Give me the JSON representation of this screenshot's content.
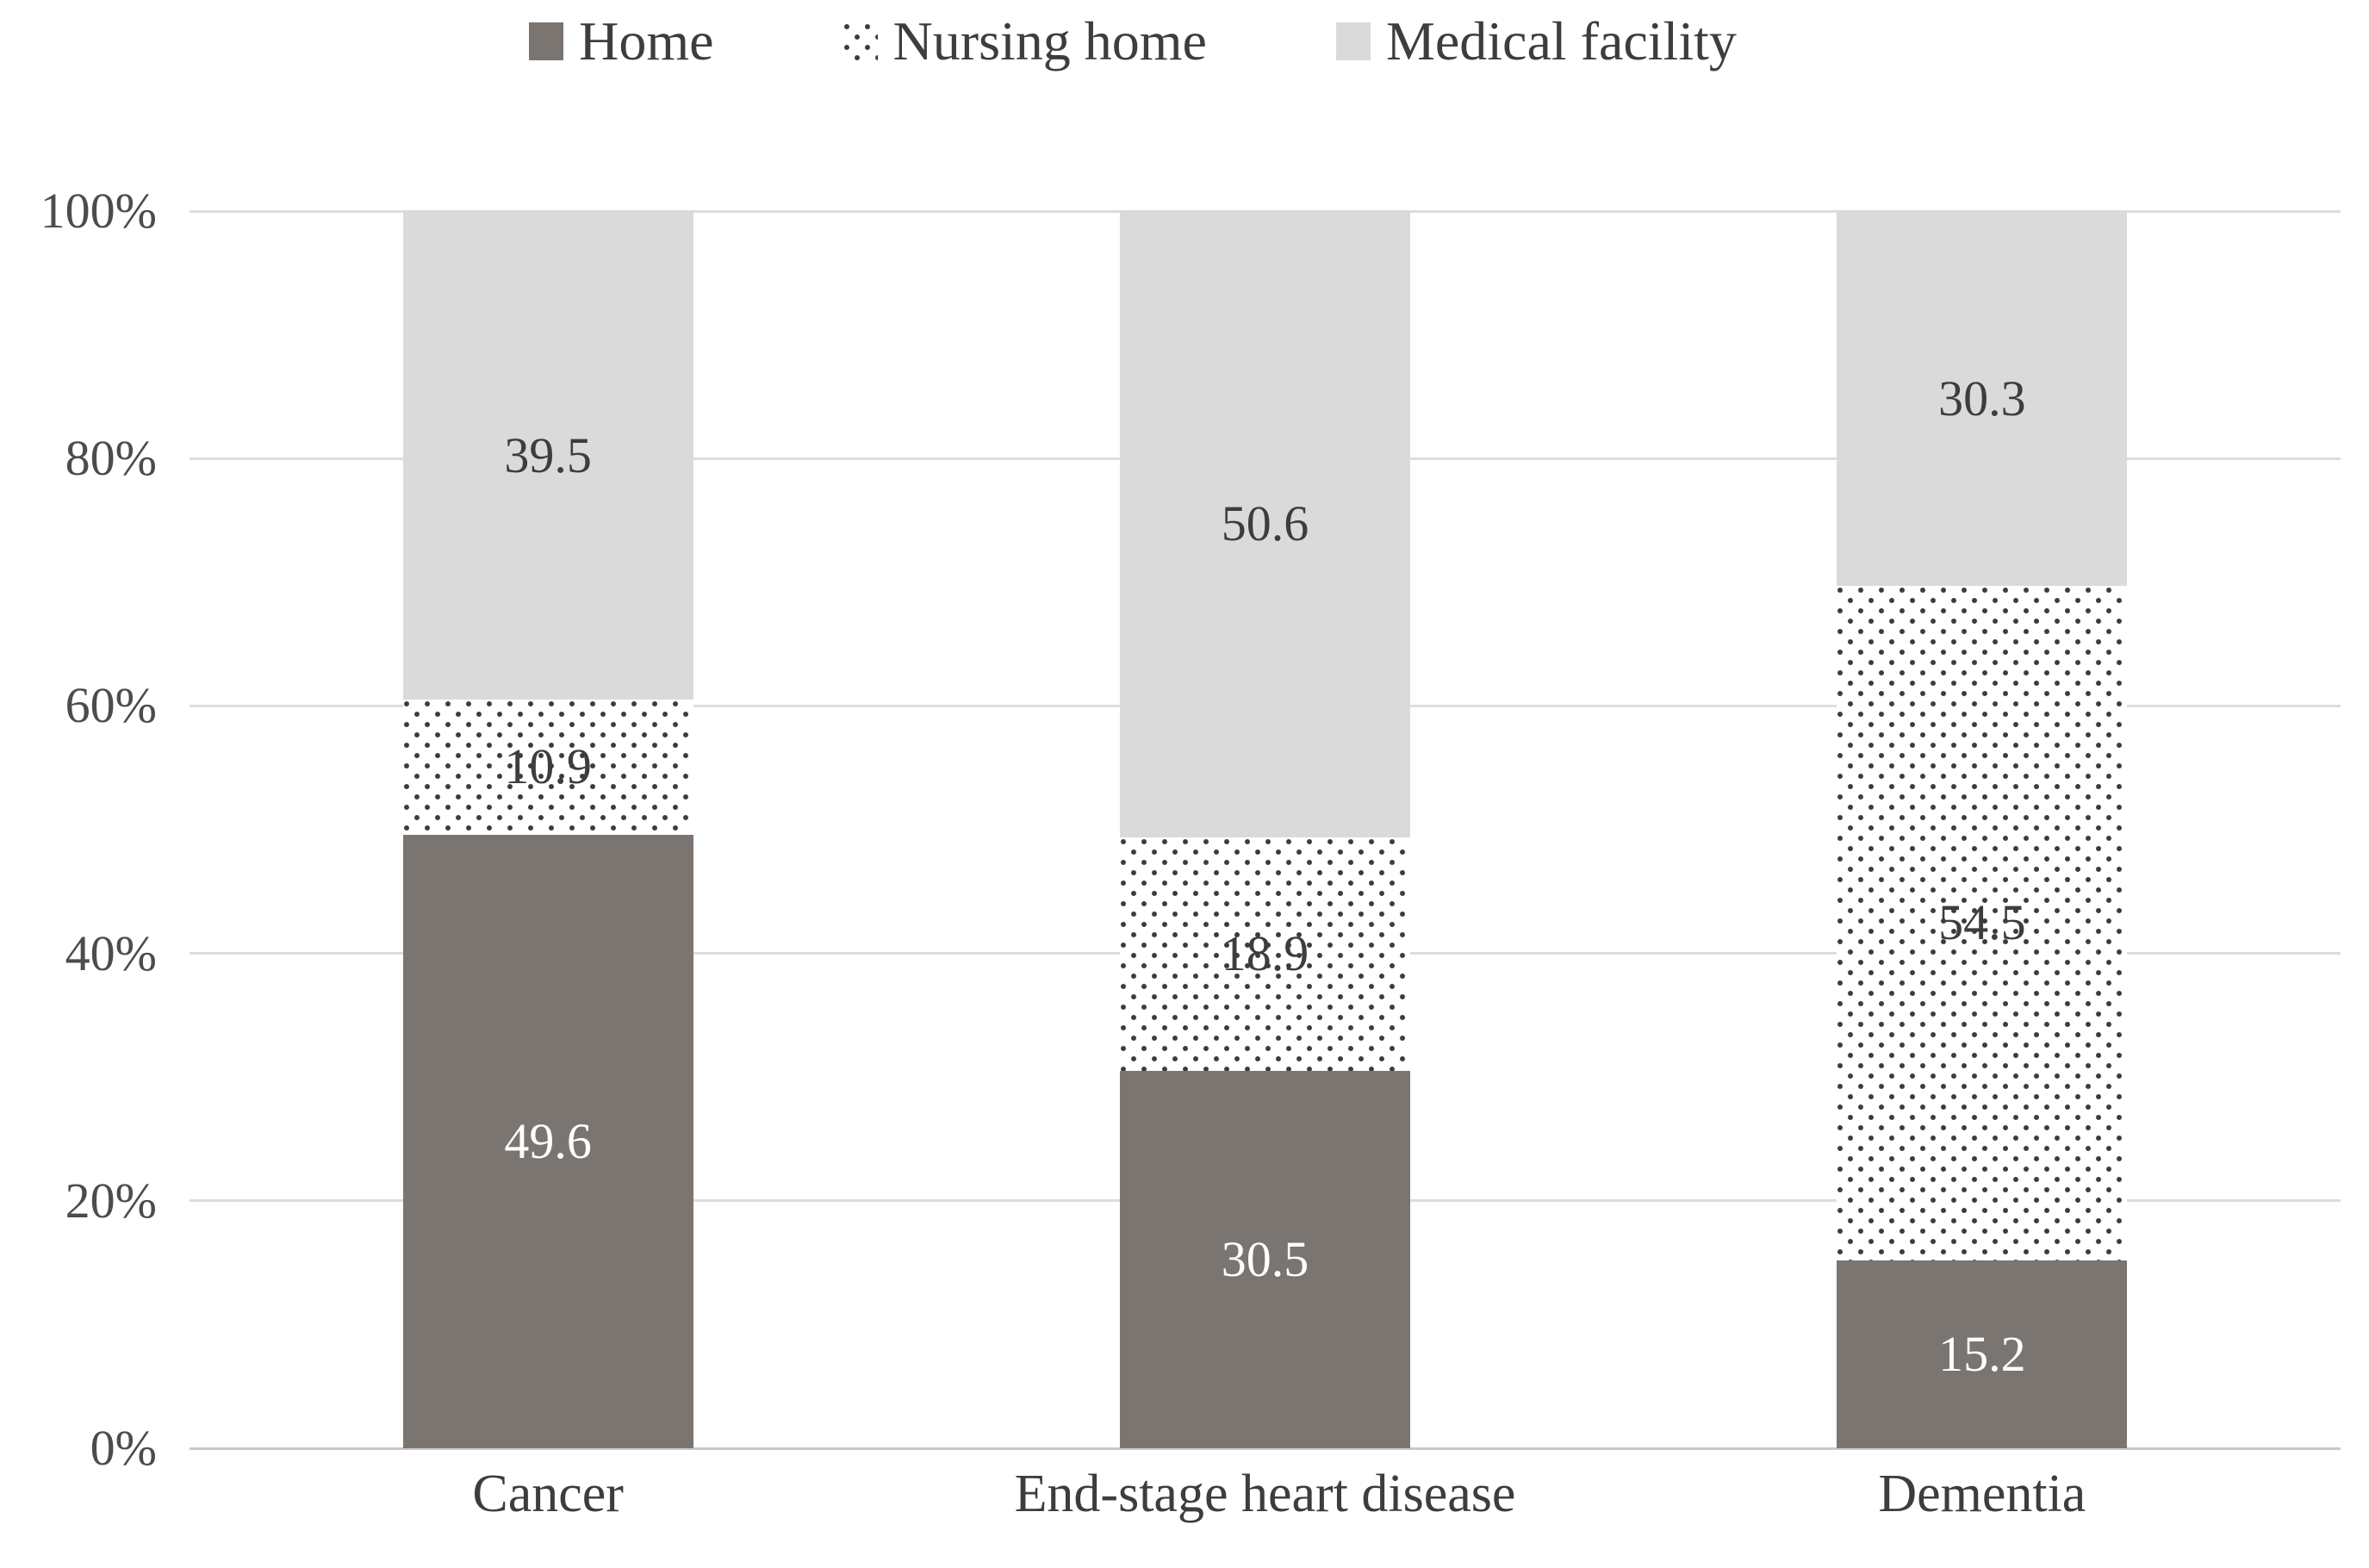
{
  "colors": {
    "home_fill": "#7b7571",
    "medical_fill": "#dadada",
    "dot_color": "#3b3b3b",
    "gridline": "#dddddd",
    "axis_line": "#c9c9c9",
    "label_dark": "#3d3d3d",
    "label_on_dark": "#ffffff"
  },
  "chart_data": {
    "type": "bar",
    "stacked": true,
    "percent_stacked": true,
    "categories": [
      "Cancer",
      "End-stage heart disease",
      "Dementia"
    ],
    "series": [
      {
        "name": "Home",
        "style": "solid-dark",
        "label_color": "white",
        "values": [
          49.6,
          30.5,
          15.2
        ]
      },
      {
        "name": "Nursing home",
        "style": "dotted",
        "label_color": "dark",
        "values": [
          10.9,
          18.9,
          54.5
        ]
      },
      {
        "name": "Medical facility",
        "style": "solid-light",
        "label_color": "dark",
        "values": [
          39.5,
          50.6,
          30.3
        ]
      }
    ],
    "y_ticks": [
      "0%",
      "20%",
      "40%",
      "60%",
      "80%",
      "100%"
    ],
    "ylim": [
      0,
      100
    ],
    "grid": true,
    "legend_position": "top",
    "data_labels": "center"
  }
}
